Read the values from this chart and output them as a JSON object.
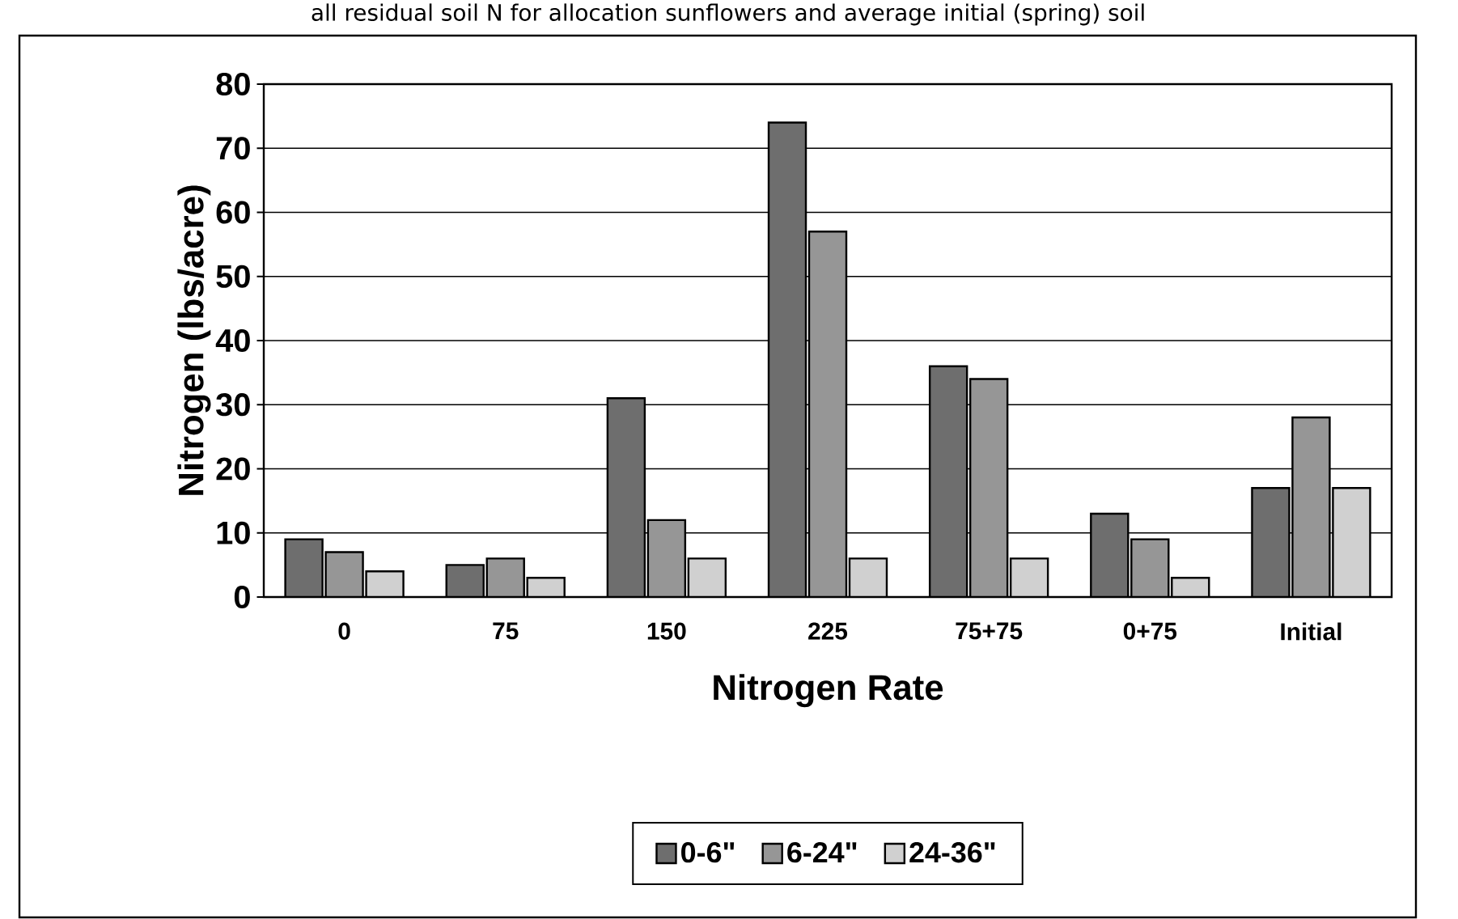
{
  "chart_data": {
    "type": "bar",
    "title": "all residual soil N for allocation sunflowers and average initial (spring) soil",
    "xlabel": "Nitrogen Rate",
    "ylabel": "Nitrogen (lbs/acre)",
    "categories": [
      "0",
      "75",
      "150",
      "225",
      "75+75",
      "0+75",
      "Initial"
    ],
    "series": [
      {
        "name": "0-6\"",
        "color": "#6e6e6e",
        "values": [
          9,
          5,
          31,
          74,
          36,
          13,
          17
        ]
      },
      {
        "name": "6-24\"",
        "color": "#969696",
        "values": [
          7,
          6,
          12,
          57,
          34,
          9,
          28
        ]
      },
      {
        "name": "24-36\"",
        "color": "#d0d0d0",
        "values": [
          4,
          3,
          6,
          6,
          6,
          3,
          17
        ]
      }
    ],
    "ylim": [
      0,
      80
    ],
    "yticks": [
      0,
      10,
      20,
      30,
      40,
      50,
      60,
      70,
      80
    ],
    "grid": "y",
    "legend": "bottom"
  }
}
